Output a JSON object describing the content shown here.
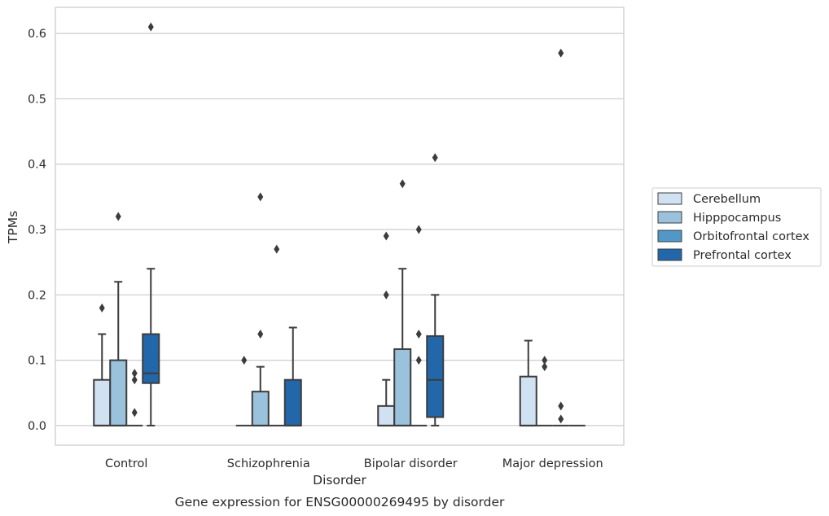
{
  "chart_data": {
    "type": "box",
    "title": "Gene expression for ENSG00000269495 by disorder",
    "xlabel": "Disorder",
    "ylabel": "TPMs",
    "ylim": [
      -0.03,
      0.64
    ],
    "yticks": [
      "0.0",
      "0.1",
      "0.2",
      "0.3",
      "0.4",
      "0.5",
      "0.6"
    ],
    "ytick_values": [
      0.0,
      0.1,
      0.2,
      0.3,
      0.4,
      0.5,
      0.6
    ],
    "grid": true,
    "legend_position": "right",
    "categories": [
      "Control",
      "Schizophrenia",
      "Bipolar disorder",
      "Major depression"
    ],
    "series": [
      {
        "name": "Cerebellum",
        "color": "#d0e1f2",
        "boxes": [
          {
            "q1": 0.0,
            "median": 0.0,
            "q3": 0.07,
            "whisker_low": 0.0,
            "whisker_high": 0.14,
            "outliers": [
              0.18
            ]
          },
          {
            "q1": 0.0,
            "median": 0.0,
            "q3": 0.0,
            "whisker_low": 0.0,
            "whisker_high": 0.0,
            "outliers": [
              0.1
            ]
          },
          {
            "q1": 0.0,
            "median": 0.0,
            "q3": 0.03,
            "whisker_low": 0.0,
            "whisker_high": 0.07,
            "outliers": [
              0.2,
              0.29
            ]
          },
          {
            "q1": 0.0,
            "median": 0.0,
            "q3": 0.075,
            "whisker_low": 0.0,
            "whisker_high": 0.13,
            "outliers": []
          }
        ]
      },
      {
        "name": "Hipppocampus",
        "color": "#9ac2dc",
        "boxes": [
          {
            "q1": 0.0,
            "median": 0.0,
            "q3": 0.1,
            "whisker_low": 0.0,
            "whisker_high": 0.22,
            "outliers": [
              0.32
            ]
          },
          {
            "q1": 0.0,
            "median": 0.0,
            "q3": 0.052,
            "whisker_low": 0.0,
            "whisker_high": 0.09,
            "outliers": [
              0.14,
              0.35
            ]
          },
          {
            "q1": 0.0,
            "median": 0.0,
            "q3": 0.117,
            "whisker_low": 0.0,
            "whisker_high": 0.24,
            "outliers": [
              0.37
            ]
          },
          {
            "q1": 0.0,
            "median": 0.0,
            "q3": 0.0,
            "whisker_low": 0.0,
            "whisker_high": 0.0,
            "outliers": [
              0.09,
              0.1
            ]
          }
        ]
      },
      {
        "name": "Orbitofrontal cortex",
        "color": "#5098c7",
        "boxes": [
          {
            "q1": 0.0,
            "median": 0.0,
            "q3": 0.0,
            "whisker_low": 0.0,
            "whisker_high": 0.0,
            "outliers": [
              0.02,
              0.07,
              0.08
            ]
          },
          {
            "q1": 0.0,
            "median": 0.0,
            "q3": 0.0,
            "whisker_low": 0.0,
            "whisker_high": 0.0,
            "outliers": [
              0.27
            ]
          },
          {
            "q1": 0.0,
            "median": 0.0,
            "q3": 0.0,
            "whisker_low": 0.0,
            "whisker_high": 0.0,
            "outliers": [
              0.1,
              0.14,
              0.3
            ]
          },
          {
            "q1": 0.0,
            "median": 0.0,
            "q3": 0.0,
            "whisker_low": 0.0,
            "whisker_high": 0.0,
            "outliers": [
              0.01,
              0.03,
              0.57
            ]
          }
        ]
      },
      {
        "name": "Prefrontal cortex",
        "color": "#2367ab",
        "boxes": [
          {
            "q1": 0.065,
            "median": 0.08,
            "q3": 0.14,
            "whisker_low": 0.0,
            "whisker_high": 0.24,
            "outliers": [
              0.61
            ]
          },
          {
            "q1": 0.0,
            "median": 0.0,
            "q3": 0.07,
            "whisker_low": 0.0,
            "whisker_high": 0.15,
            "outliers": []
          },
          {
            "q1": 0.013,
            "median": 0.07,
            "q3": 0.137,
            "whisker_low": 0.0,
            "whisker_high": 0.2,
            "outliers": [
              0.41
            ]
          },
          {
            "q1": 0.0,
            "median": 0.0,
            "q3": 0.0,
            "whisker_low": 0.0,
            "whisker_high": 0.0,
            "outliers": []
          }
        ]
      }
    ]
  }
}
